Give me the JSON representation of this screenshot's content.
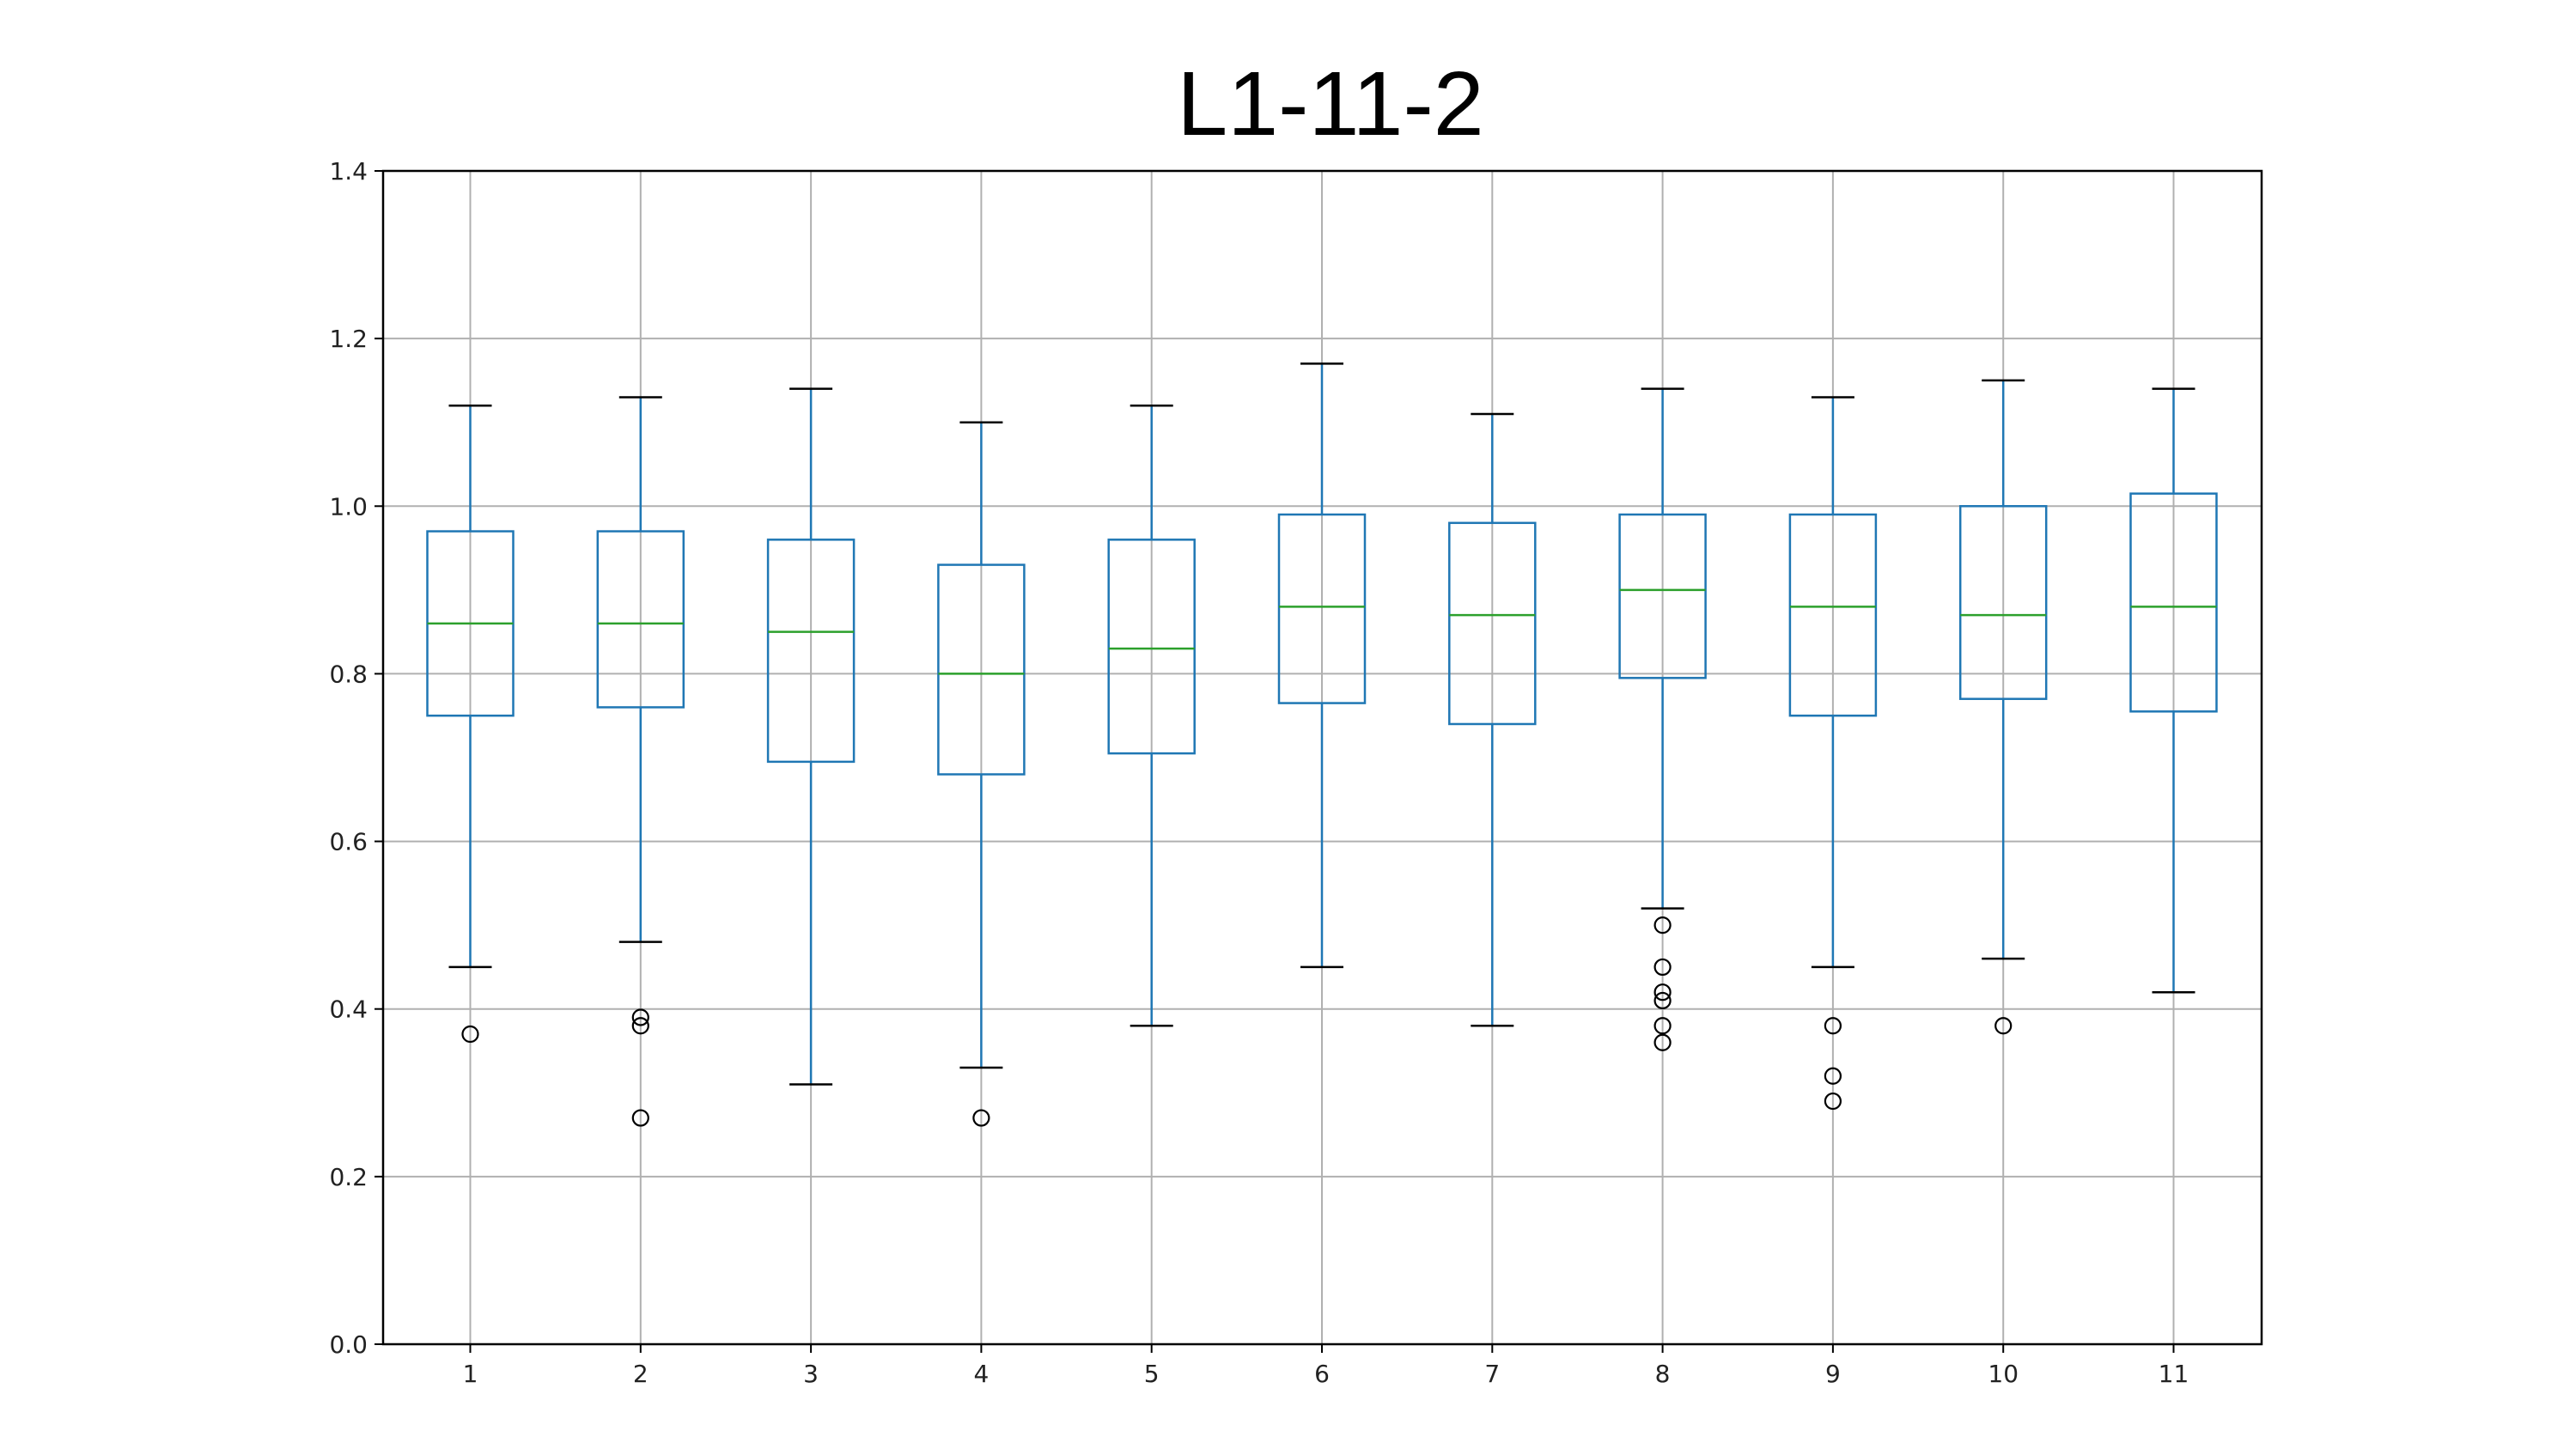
{
  "chart_data": {
    "type": "box",
    "title": "L1-11-2",
    "xlabel": "",
    "ylabel": "",
    "ylim": [
      0.0,
      1.4
    ],
    "yticks": [
      "0.0",
      "0.2",
      "0.4",
      "0.6",
      "0.8",
      "1.0",
      "1.2",
      "1.4"
    ],
    "categories": [
      "1",
      "2",
      "3",
      "4",
      "5",
      "6",
      "7",
      "8",
      "9",
      "10",
      "11"
    ],
    "grid": true,
    "boxes": [
      {
        "whisker_low": 0.45,
        "q1": 0.75,
        "median": 0.86,
        "q3": 0.97,
        "whisker_high": 1.12,
        "outliers": [
          0.37
        ]
      },
      {
        "whisker_low": 0.48,
        "q1": 0.76,
        "median": 0.86,
        "q3": 0.97,
        "whisker_high": 1.13,
        "outliers": [
          0.39,
          0.38,
          0.27
        ]
      },
      {
        "whisker_low": 0.31,
        "q1": 0.695,
        "median": 0.85,
        "q3": 0.96,
        "whisker_high": 1.14,
        "outliers": []
      },
      {
        "whisker_low": 0.33,
        "q1": 0.68,
        "median": 0.8,
        "q3": 0.93,
        "whisker_high": 1.1,
        "outliers": [
          0.27
        ]
      },
      {
        "whisker_low": 0.38,
        "q1": 0.705,
        "median": 0.83,
        "q3": 0.96,
        "whisker_high": 1.12,
        "outliers": []
      },
      {
        "whisker_low": 0.45,
        "q1": 0.765,
        "median": 0.88,
        "q3": 0.99,
        "whisker_high": 1.17,
        "outliers": []
      },
      {
        "whisker_low": 0.38,
        "q1": 0.74,
        "median": 0.87,
        "q3": 0.98,
        "whisker_high": 1.11,
        "outliers": []
      },
      {
        "whisker_low": 0.52,
        "q1": 0.795,
        "median": 0.9,
        "q3": 0.99,
        "whisker_high": 1.14,
        "outliers": [
          0.5,
          0.45,
          0.42,
          0.41,
          0.38,
          0.36
        ]
      },
      {
        "whisker_low": 0.45,
        "q1": 0.75,
        "median": 0.88,
        "q3": 0.99,
        "whisker_high": 1.13,
        "outliers": [
          0.38,
          0.32,
          0.29
        ]
      },
      {
        "whisker_low": 0.46,
        "q1": 0.77,
        "median": 0.87,
        "q3": 1.0,
        "whisker_high": 1.15,
        "outliers": [
          0.38
        ]
      },
      {
        "whisker_low": 0.42,
        "q1": 0.755,
        "median": 0.88,
        "q3": 1.015,
        "whisker_high": 1.14,
        "outliers": []
      }
    ],
    "colors": {
      "box": "#1f77b4",
      "median": "#2ca02c",
      "whisker_cap": "#000000",
      "outlier": "#000000",
      "grid": "#b0b0b0",
      "axes": "#000000"
    }
  }
}
